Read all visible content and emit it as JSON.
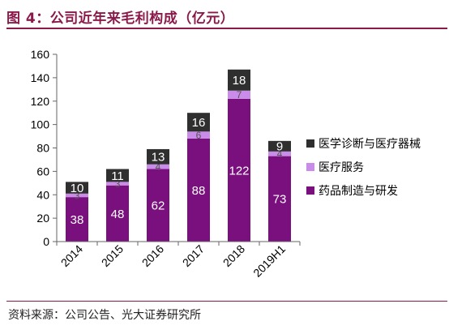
{
  "header": {
    "title": "图 4：公司近年来毛利构成（亿元）"
  },
  "footer": {
    "source": "资料来源：公司公告、光大证券研究所"
  },
  "colors": {
    "accent": "#8b1a4a",
    "drug": "#7a0f7e",
    "service": "#c98ce8",
    "device": "#2f2f2f"
  },
  "chart_data": {
    "type": "bar",
    "stacked": true,
    "categories": [
      "2014",
      "2015",
      "2016",
      "2017",
      "2018",
      "2019H1"
    ],
    "series": [
      {
        "name": "药品制造与研发",
        "values": [
          38,
          48,
          62,
          88,
          122,
          73
        ],
        "labels": [
          "38",
          "48",
          "62",
          "88",
          "122",
          "73"
        ],
        "color": "#7a0f7e"
      },
      {
        "name": "医疗服务",
        "values": [
          3,
          3,
          4,
          6,
          7,
          4
        ],
        "labels": [
          "3",
          "3",
          "4",
          "6",
          "7",
          "4"
        ],
        "color": "#c98ce8"
      },
      {
        "name": "医学诊断与医疗器械",
        "values": [
          10,
          11,
          13,
          16,
          18,
          9
        ],
        "labels": [
          "10",
          "11",
          "13",
          "16",
          "18",
          "9"
        ],
        "color": "#2f2f2f"
      }
    ],
    "ylim": [
      0,
      160
    ],
    "yticks": [
      "0",
      "20",
      "40",
      "60",
      "80",
      "100",
      "120",
      "140",
      "160"
    ],
    "legend": "right",
    "grid": false
  }
}
